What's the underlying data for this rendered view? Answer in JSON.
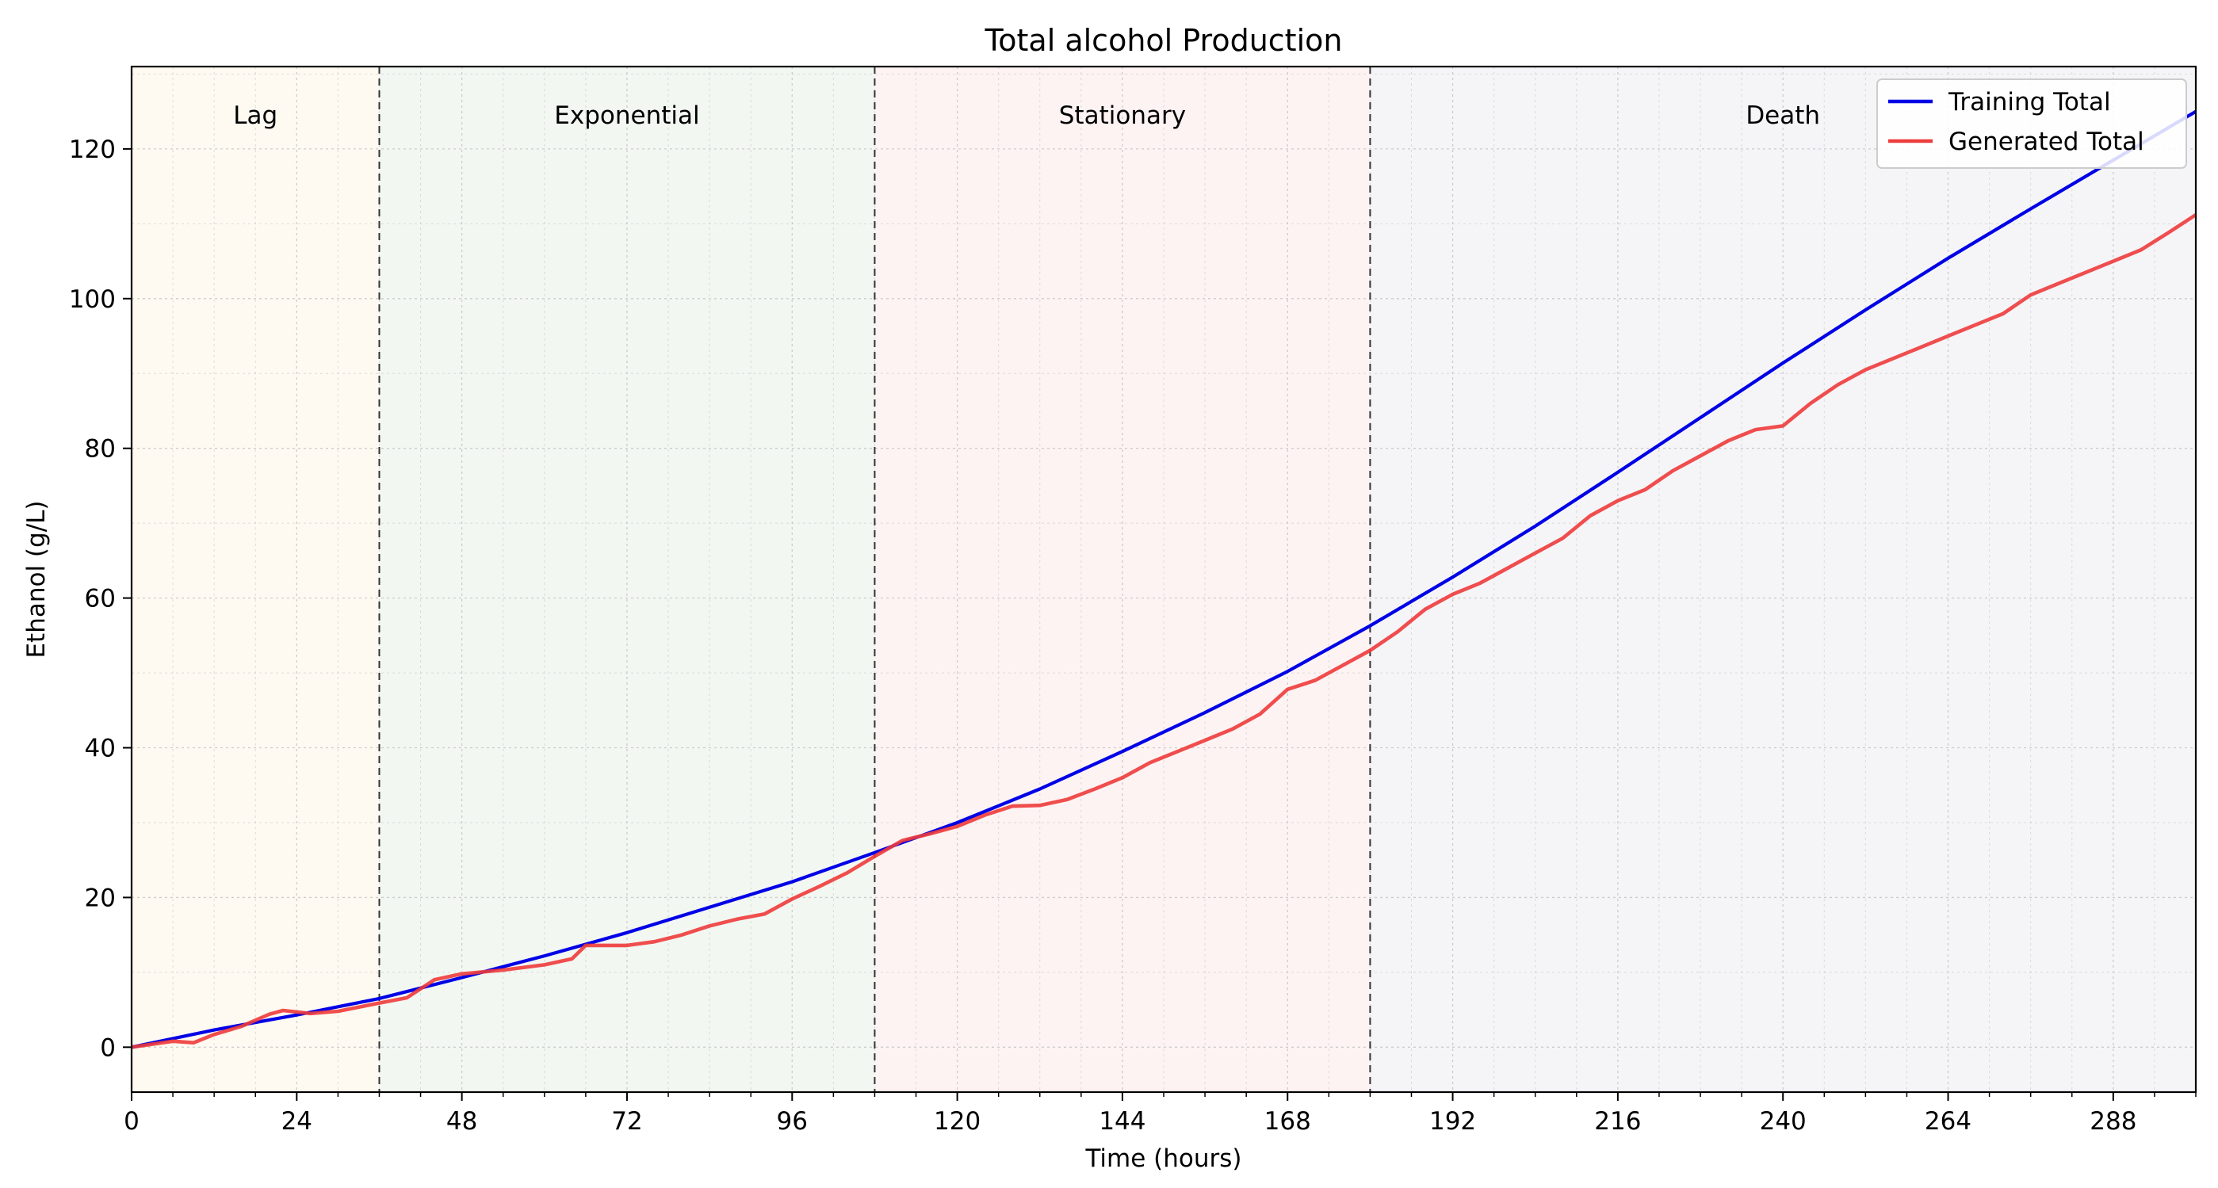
{
  "chart_data": {
    "type": "line",
    "title": "Total alcohol Production",
    "xlabel": "Time (hours)",
    "ylabel": "Ethanol (g/L)",
    "xlim": [
      0,
      300
    ],
    "ylim": [
      -6,
      131
    ],
    "xticks": [
      0,
      24,
      48,
      72,
      96,
      120,
      144,
      168,
      192,
      216,
      240,
      264,
      288
    ],
    "yticks": [
      0,
      20,
      40,
      60,
      80,
      100,
      120
    ],
    "grid": true,
    "legend_position": "top-right",
    "phases": [
      {
        "label": "Lag",
        "start": 0,
        "end": 36,
        "color": "#fdf6e3"
      },
      {
        "label": "Exponential",
        "start": 36,
        "end": 108,
        "color": "#e6f0e6"
      },
      {
        "label": "Stationary",
        "start": 108,
        "end": 180,
        "color": "#fde8e8"
      },
      {
        "label": "Death",
        "start": 180,
        "end": 300,
        "color": "#ececf2"
      }
    ],
    "phase_boundaries": [
      36,
      108,
      180
    ],
    "series": [
      {
        "name": "Training Total",
        "color": "#0000e6",
        "x": [
          0,
          12,
          24,
          36,
          48,
          60,
          72,
          84,
          96,
          108,
          120,
          132,
          144,
          156,
          168,
          180,
          192,
          204,
          216,
          228,
          240,
          252,
          264,
          276,
          288,
          300
        ],
        "y": [
          0,
          2.3,
          4.3,
          6.5,
          9.3,
          12.2,
          15.3,
          18.7,
          22.1,
          26.0,
          30.0,
          34.5,
          39.5,
          44.7,
          50.2,
          56.3,
          62.8,
          69.6,
          76.8,
          84.1,
          91.4,
          98.5,
          105.4,
          112.0,
          118.5,
          125.0
        ]
      },
      {
        "name": "Generated Total",
        "color": "#ee3b3b",
        "x": [
          0,
          6,
          9,
          12,
          16,
          20,
          22,
          26,
          30,
          36,
          40,
          44,
          48,
          54,
          60,
          64,
          66,
          72,
          76,
          80,
          84,
          88,
          92,
          96,
          100,
          104,
          108,
          112,
          116,
          120,
          124,
          128,
          132,
          136,
          140,
          144,
          148,
          152,
          156,
          160,
          164,
          168,
          172,
          176,
          180,
          184,
          188,
          192,
          196,
          200,
          204,
          208,
          212,
          216,
          220,
          224,
          228,
          232,
          236,
          240,
          244,
          248,
          252,
          256,
          260,
          264,
          268,
          272,
          276,
          280,
          284,
          288,
          292,
          296,
          300
        ],
        "y": [
          0,
          0.8,
          0.6,
          1.7,
          2.8,
          4.4,
          4.9,
          4.5,
          4.8,
          5.9,
          6.6,
          9.0,
          9.8,
          10.3,
          11.0,
          11.8,
          13.6,
          13.6,
          14.1,
          15.0,
          16.2,
          17.1,
          17.8,
          19.8,
          21.5,
          23.3,
          25.5,
          27.6,
          28.5,
          29.5,
          31.0,
          32.2,
          32.3,
          33.1,
          34.5,
          36.0,
          38.0,
          39.5,
          41.0,
          42.5,
          44.5,
          47.8,
          49.0,
          51.0,
          53.0,
          55.5,
          58.5,
          60.5,
          62.0,
          64.0,
          66.0,
          68.0,
          71.0,
          73.0,
          74.5,
          77.0,
          79.0,
          81.0,
          82.5,
          83.0,
          86.0,
          88.5,
          90.5,
          92.0,
          93.5,
          95.0,
          96.5,
          98.0,
          100.5,
          102.0,
          103.5,
          105.0,
          106.5,
          108.8,
          111.2
        ]
      }
    ]
  }
}
